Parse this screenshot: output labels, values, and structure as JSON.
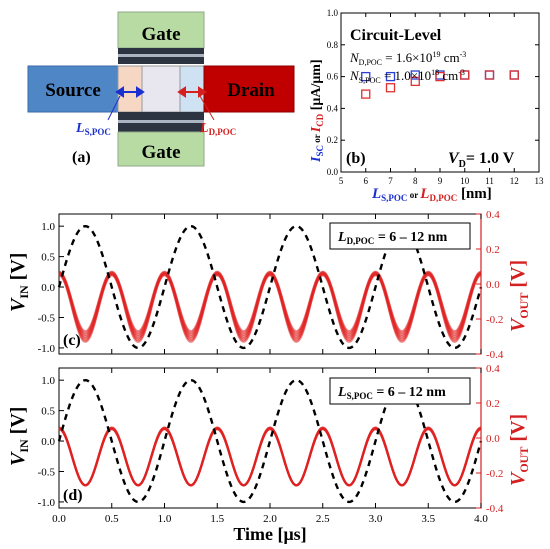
{
  "panel_a": {
    "label": "(a)",
    "gate_top": "Gate",
    "gate_bottom": "Gate",
    "source": "Source",
    "drain": "Drain",
    "ls_main": "L",
    "ls_sub": "S,POC",
    "ld_main": "L",
    "ld_sub": "D,POC",
    "colors": {
      "source": "#4f86c6",
      "drain": "#c00000",
      "gate": "#b8dba4",
      "oxide": "#2b3440",
      "channel": "#e8e6ee",
      "poc_s": "#f6d7c3",
      "poc_d": "#cfe2f3"
    }
  },
  "chart_data": [
    {
      "id": "b",
      "type": "scatter",
      "panel_label": "(b)",
      "title": "Circuit-Level",
      "annotations": [
        {
          "main": "N",
          "sub": "D,POC",
          "text": " = 1.6×10",
          "sup": "19",
          "unit": " cm",
          "unit_sup": "-3"
        },
        {
          "main": "N",
          "sub": "S,POC",
          "text": " = 1.0×10",
          "sup": "18",
          "unit": " cm",
          "unit_sup": "-3"
        }
      ],
      "vd_main": "V",
      "vd_sub": "D",
      "vd_text": "= 1.0 V",
      "ylabel": {
        "p1": "I",
        "s1": "SC",
        "or": " or ",
        "p2": "I",
        "s2": "CD",
        "unit": " [μA/μm]"
      },
      "xlabel": {
        "p1": "L",
        "s1": "S,POC",
        "or": " or ",
        "p2": "L",
        "s2": "D,POC",
        "unit": " [nm]"
      },
      "xlim": [
        5,
        13
      ],
      "ylim": [
        0,
        1.0
      ],
      "xticks": [
        "5",
        "6",
        "7",
        "8",
        "9",
        "10",
        "11",
        "12",
        "13"
      ],
      "yticks": [
        "0.0",
        "0.2",
        "0.4",
        "0.6",
        "0.8",
        "1.0"
      ],
      "series": [
        {
          "color": "#2a3fd1",
          "x": [
            6,
            7,
            8,
            9,
            10,
            11,
            12
          ],
          "y": [
            0.6,
            0.6,
            0.61,
            0.61,
            0.61,
            0.61,
            0.61
          ]
        },
        {
          "color": "#e03030",
          "x": [
            6,
            7,
            8,
            9,
            10,
            11,
            12
          ],
          "y": [
            0.49,
            0.53,
            0.57,
            0.6,
            0.61,
            0.61,
            0.61
          ]
        }
      ]
    },
    {
      "id": "c",
      "type": "line",
      "panel_label": "(c)",
      "legend": {
        "main": "L",
        "sub": "D,POC",
        "text": " = 6 – 12 nm"
      },
      "ylabel_left": {
        "main": "V",
        "sub": "IN",
        "unit": " [V]"
      },
      "ylabel_right": {
        "main": "V",
        "sub": "OUT",
        "unit": " [V]"
      },
      "ylim_left": [
        -1.1,
        1.2
      ],
      "ylim_right": [
        -0.4,
        0.4
      ],
      "yticks_left": [
        "-1.0",
        "-0.5",
        "0.0",
        "0.5",
        "1.0"
      ],
      "yticks_right": [
        "-0.4",
        "-0.2",
        "0.0",
        "0.2",
        "0.4"
      ],
      "xlim": [
        0,
        4.0
      ],
      "vin": {
        "color": "#000000",
        "amplitude": 1.0,
        "frequency_MHz": 1.0,
        "style": "dashed"
      },
      "vout": {
        "color": "#e02020",
        "freq_MHz": 2.0,
        "min_range": [
          -0.33,
          -0.27
        ],
        "max_range": [
          0.05,
          0.07
        ],
        "variants": 7,
        "style": "solid"
      }
    },
    {
      "id": "d",
      "type": "line",
      "panel_label": "(d)",
      "legend": {
        "main": "L",
        "sub": "S,POC",
        "text": " = 6 – 12 nm"
      },
      "ylabel_left": {
        "main": "V",
        "sub": "IN",
        "unit": " [V]"
      },
      "ylabel_right": {
        "main": "V",
        "sub": "OUT",
        "unit": " [V]"
      },
      "ylim_left": [
        -1.1,
        1.2
      ],
      "ylim_right": [
        -0.4,
        0.4
      ],
      "yticks_left": [
        "-1.0",
        "-0.5",
        "0.0",
        "0.5",
        "1.0"
      ],
      "yticks_right": [
        "-0.4",
        "-0.2",
        "0.0",
        "0.2",
        "0.4"
      ],
      "xlim": [
        0,
        4.0
      ],
      "xticks": [
        "0.0",
        "0.5",
        "1.0",
        "1.5",
        "2.0",
        "2.5",
        "3.0",
        "3.5",
        "4.0"
      ],
      "xlabel": "Time [μs]",
      "vin": {
        "color": "#000000",
        "amplitude": 1.0,
        "frequency_MHz": 1.0,
        "style": "dashed"
      },
      "vout": {
        "color": "#e02020",
        "freq_MHz": 2.0,
        "min_range": [
          -0.27,
          -0.27
        ],
        "max_range": [
          0.05,
          0.06
        ],
        "variants": 7,
        "style": "solid"
      }
    }
  ]
}
